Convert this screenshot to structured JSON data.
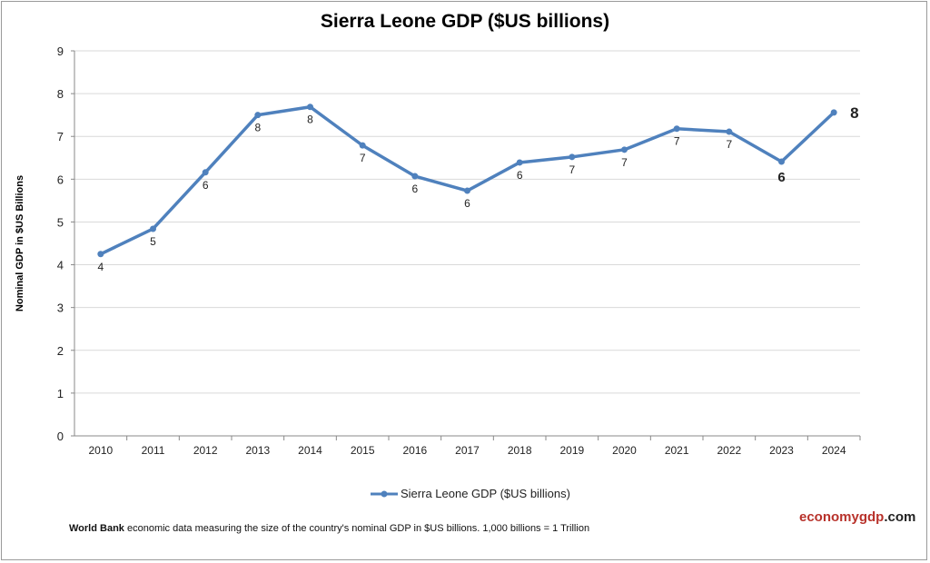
{
  "chart_data": {
    "type": "line",
    "title": "Sierra Leone GDP ($US billions)",
    "xlabel": "",
    "ylabel": "Nominal GDP in $US Billions",
    "categories": [
      "2010",
      "2011",
      "2012",
      "2013",
      "2014",
      "2015",
      "2016",
      "2017",
      "2018",
      "2019",
      "2020",
      "2021",
      "2022",
      "2023",
      "2024"
    ],
    "series": [
      {
        "name": "Sierra Leone GDP ($US billions)",
        "values": [
          4.25,
          4.84,
          6.16,
          7.5,
          7.69,
          6.79,
          6.07,
          5.73,
          6.39,
          6.52,
          6.69,
          7.18,
          7.11,
          6.41,
          7.56
        ],
        "data_labels": [
          "4",
          "5",
          "6",
          "8",
          "8",
          "7",
          "6",
          "6",
          "6",
          "7",
          "7",
          "7",
          "7",
          "6",
          "8"
        ],
        "color": "#4f81bd"
      }
    ],
    "ylim": [
      0,
      9
    ],
    "yticks": [
      0,
      1,
      2,
      3,
      4,
      5,
      6,
      7,
      8,
      9
    ],
    "grid": true,
    "legend": "bottom"
  },
  "footer": {
    "bold": "World Bank",
    "text": " economic data  measuring the size of the country's nominal GDP in $US billions. 1,000 billions = 1 Trillion"
  },
  "logo": {
    "part1": "economygdp",
    "part2": ".com"
  }
}
